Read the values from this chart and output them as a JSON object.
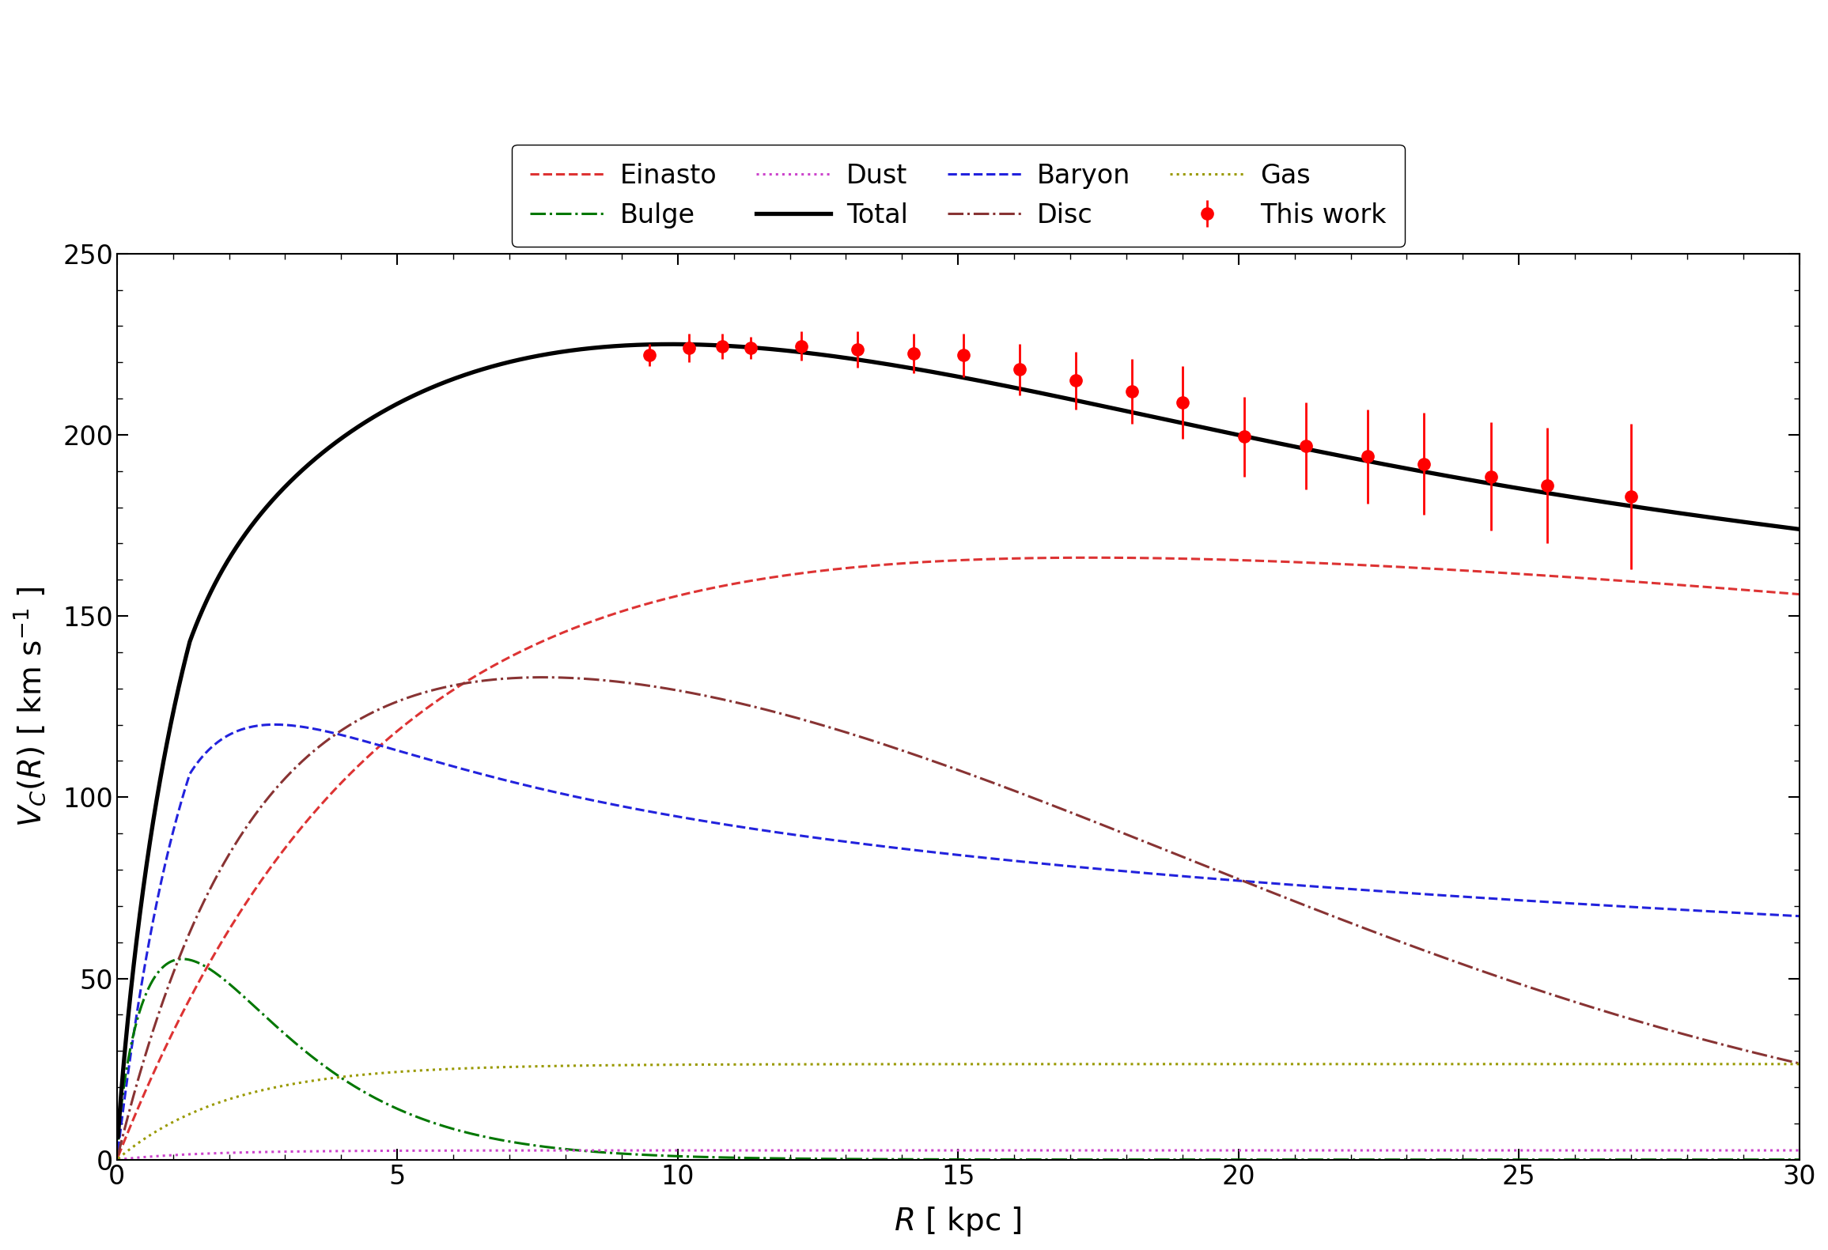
{
  "xlabel": "$R$ [ kpc ]",
  "ylabel": "$V_C(R)$ [ km s$^{-1}$ ]",
  "xlim": [
    0,
    30
  ],
  "ylim": [
    0,
    250
  ],
  "xticks": [
    0,
    5,
    10,
    15,
    20,
    25,
    30
  ],
  "yticks": [
    0,
    50,
    100,
    150,
    200,
    250
  ],
  "colors": {
    "einasto": "#dd3333",
    "baryon": "#2222dd",
    "bulge": "#007700",
    "disc": "#883333",
    "dust": "#cc44cc",
    "gas": "#999900",
    "total": "#000000",
    "data": "#ff0000"
  },
  "data_R": [
    9.5,
    10.2,
    10.8,
    11.3,
    12.2,
    13.2,
    14.2,
    15.1,
    16.1,
    17.1,
    18.1,
    19.0,
    20.1,
    21.2,
    22.3,
    23.3,
    24.5,
    25.5,
    27.0
  ],
  "data_V": [
    222.0,
    224.0,
    224.5,
    224.0,
    224.5,
    223.5,
    222.5,
    222.0,
    218.0,
    215.0,
    212.0,
    209.0,
    199.5,
    197.0,
    194.0,
    192.0,
    188.5,
    186.0,
    183.0
  ],
  "data_el": [
    3.0,
    4.0,
    3.5,
    3.0,
    4.0,
    5.0,
    5.5,
    6.0,
    7.0,
    8.0,
    9.0,
    10.0,
    11.0,
    12.0,
    13.0,
    14.0,
    15.0,
    16.0,
    20.0
  ],
  "data_eh": [
    3.0,
    4.0,
    3.5,
    3.0,
    4.0,
    5.0,
    5.5,
    6.0,
    7.0,
    8.0,
    9.0,
    10.0,
    11.0,
    12.0,
    13.0,
    14.0,
    15.0,
    16.0,
    20.0
  ],
  "figsize": [
    23.11,
    15.81
  ],
  "dpi": 100,
  "font_size": 28,
  "legend_font_size": 24,
  "tick_font_size": 24,
  "lw_component": 2.2,
  "lw_total": 3.8
}
